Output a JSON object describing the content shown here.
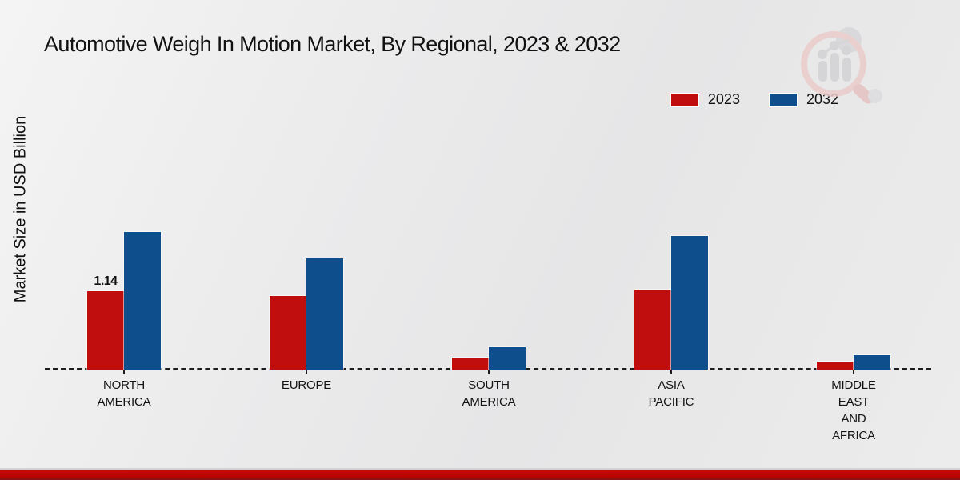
{
  "header": {
    "title": "Automotive Weigh In Motion Market, By Regional, 2023 & 2032"
  },
  "y_axis": {
    "label": "Market Size in USD Billion"
  },
  "legend": [
    {
      "label": "2023",
      "color": "#c00d0d"
    },
    {
      "label": "2032",
      "color": "#0f4e8d"
    }
  ],
  "chart_data": {
    "type": "bar",
    "title": "Automotive Weigh In Motion Market, By Regional, 2023 & 2032",
    "xlabel": "",
    "ylabel": "Market Size in USD Billion",
    "unit": "USD Billion",
    "categories": [
      "North America",
      "Europe",
      "South America",
      "Asia Pacific",
      "Middle East and Africa"
    ],
    "category_display": [
      [
        "NORTH",
        "AMERICA"
      ],
      [
        "EUROPE"
      ],
      [
        "SOUTH",
        "AMERICA"
      ],
      [
        "ASIA",
        "PACIFIC"
      ],
      [
        "MIDDLE",
        "EAST",
        "AND",
        "AFRICA"
      ]
    ],
    "series": [
      {
        "name": "2023",
        "color": "#c00d0d",
        "values": [
          1.14,
          1.07,
          0.18,
          1.16,
          0.12
        ]
      },
      {
        "name": "2032",
        "color": "#0f4e8d",
        "values": [
          2.0,
          1.62,
          0.32,
          1.94,
          0.21
        ]
      }
    ],
    "bar_labels": [
      {
        "series": "2023",
        "category": "North America",
        "text": "1.14"
      }
    ],
    "ylim": [
      0,
      2.2
    ],
    "grid": false,
    "legend_position": "top-right",
    "baseline_style": "dashed",
    "colors": {
      "series_2023": "#c00d0d",
      "series_2032": "#0f4e8d",
      "background": "#e9e9ea",
      "bottom_bar": "#b80404"
    }
  }
}
